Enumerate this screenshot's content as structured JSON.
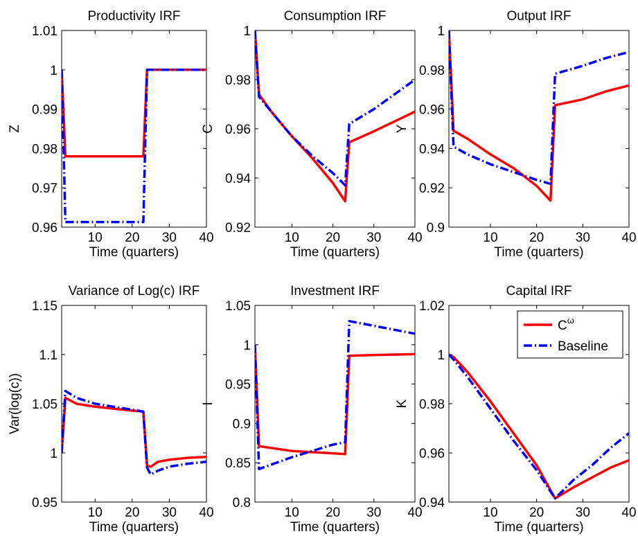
{
  "figure": {
    "legend": {
      "series_labels": [
        "C",
        "Baseline"
      ],
      "superscript": "ω",
      "colors": [
        "#ff0000",
        "#0000ff"
      ],
      "styles": [
        "solid",
        "dash-dot"
      ],
      "placement": "top-right of Capital IRF panel"
    }
  },
  "chart_data": [
    {
      "type": "line",
      "title": "Productivity IRF",
      "xlabel": "Time (quarters)",
      "ylabel": "Z",
      "xlim": [
        1,
        40
      ],
      "ylim": [
        0.96,
        1.01
      ],
      "xticks": [
        10,
        20,
        30,
        40
      ],
      "xtick_labels": [
        "10",
        "20",
        "30",
        "40"
      ],
      "yticks": [
        0.96,
        0.97,
        0.98,
        0.99,
        1,
        1.01
      ],
      "ytick_labels": [
        "0.96",
        "0.97",
        "0.98",
        "0.99",
        "1",
        "1.01"
      ],
      "series": [
        {
          "name": "C^ω",
          "color": "#ff0000",
          "style": "solid",
          "x": [
            1,
            2,
            23,
            24,
            40
          ],
          "y": [
            1.0,
            0.978,
            0.978,
            1.0,
            1.0
          ]
        },
        {
          "name": "Baseline",
          "color": "#0000ff",
          "style": "dash-dot",
          "x": [
            1,
            2,
            23,
            24,
            40
          ],
          "y": [
            1.0,
            0.9613,
            0.9613,
            1.0,
            1.0
          ]
        }
      ]
    },
    {
      "type": "line",
      "title": "Consumption IRF",
      "xlabel": "Time (quarters)",
      "ylabel": "C",
      "xlim": [
        1,
        40
      ],
      "ylim": [
        0.92,
        1
      ],
      "xticks": [
        10,
        20,
        30,
        40
      ],
      "xtick_labels": [
        "10",
        "20",
        "30",
        "40"
      ],
      "yticks": [
        0.92,
        0.94,
        0.96,
        0.98,
        1
      ],
      "ytick_labels": [
        "0.92",
        "0.94",
        "0.96",
        "0.98",
        "1"
      ],
      "series": [
        {
          "name": "C^ω",
          "color": "#ff0000",
          "style": "solid",
          "x": [
            1,
            2,
            5,
            10,
            15,
            20,
            23,
            24,
            30,
            35,
            40
          ],
          "y": [
            1.0,
            0.974,
            0.967,
            0.957,
            0.948,
            0.938,
            0.9305,
            0.9545,
            0.959,
            0.963,
            0.967
          ]
        },
        {
          "name": "Baseline",
          "color": "#0000ff",
          "style": "dash-dot",
          "x": [
            1,
            2,
            5,
            10,
            15,
            20,
            23,
            24,
            30,
            35,
            40
          ],
          "y": [
            1.0,
            0.973,
            0.967,
            0.957,
            0.949,
            0.942,
            0.937,
            0.962,
            0.968,
            0.974,
            0.98
          ]
        }
      ]
    },
    {
      "type": "line",
      "title": "Output IRF",
      "xlabel": "Time (quarters)",
      "ylabel": "Y",
      "xlim": [
        1,
        40
      ],
      "ylim": [
        0.9,
        1
      ],
      "xticks": [
        10,
        20,
        30,
        40
      ],
      "xtick_labels": [
        "10",
        "20",
        "30",
        "40"
      ],
      "yticks": [
        0.9,
        0.92,
        0.94,
        0.96,
        0.98,
        1
      ],
      "ytick_labels": [
        "0.9",
        "0.92",
        "0.94",
        "0.96",
        "0.98",
        "1"
      ],
      "series": [
        {
          "name": "C^ω",
          "color": "#ff0000",
          "style": "solid",
          "x": [
            1,
            2,
            5,
            10,
            15,
            20,
            23,
            24,
            30,
            35,
            40
          ],
          "y": [
            1.0,
            0.949,
            0.945,
            0.937,
            0.93,
            0.921,
            0.9135,
            0.962,
            0.965,
            0.969,
            0.972
          ]
        },
        {
          "name": "Baseline",
          "color": "#0000ff",
          "style": "dash-dot",
          "x": [
            1,
            2,
            5,
            10,
            15,
            20,
            23,
            24,
            30,
            35,
            40
          ],
          "y": [
            1.0,
            0.941,
            0.937,
            0.932,
            0.928,
            0.924,
            0.922,
            0.978,
            0.982,
            0.986,
            0.989
          ]
        }
      ]
    },
    {
      "type": "line",
      "title": "Variance of Log(c) IRF",
      "xlabel": "Time (quarters)",
      "ylabel": "Var(log(c))",
      "xlim": [
        1,
        40
      ],
      "ylim": [
        0.95,
        1.15
      ],
      "xticks": [
        10,
        20,
        30,
        40
      ],
      "xtick_labels": [
        "10",
        "20",
        "30",
        "40"
      ],
      "yticks": [
        0.95,
        1,
        1.05,
        1.1,
        1.15
      ],
      "ytick_labels": [
        "0.95",
        "1",
        "1.05",
        "1.1",
        "1.15"
      ],
      "series": [
        {
          "name": "C^ω",
          "color": "#ff0000",
          "style": "solid",
          "x": [
            1,
            2,
            5,
            10,
            15,
            20,
            23,
            24,
            25,
            27,
            30,
            35,
            40
          ],
          "y": [
            1.0,
            1.056,
            1.05,
            1.047,
            1.045,
            1.043,
            1.042,
            0.987,
            0.986,
            0.991,
            0.993,
            0.995,
            0.996
          ]
        },
        {
          "name": "Baseline",
          "color": "#0000ff",
          "style": "dash-dot",
          "x": [
            1,
            2,
            5,
            10,
            15,
            20,
            23,
            24,
            25,
            27,
            30,
            35,
            40
          ],
          "y": [
            1.0,
            1.063,
            1.056,
            1.05,
            1.047,
            1.044,
            1.042,
            0.985,
            0.978,
            0.982,
            0.986,
            0.989,
            0.991
          ]
        }
      ]
    },
    {
      "type": "line",
      "title": "Investment IRF",
      "xlabel": "Time (quarters)",
      "ylabel": "I",
      "xlim": [
        1,
        40
      ],
      "ylim": [
        0.8,
        1.05
      ],
      "xticks": [
        10,
        20,
        30,
        40
      ],
      "xtick_labels": [
        "10",
        "20",
        "30",
        "40"
      ],
      "yticks": [
        0.8,
        0.85,
        0.9,
        0.95,
        1,
        1.05
      ],
      "ytick_labels": [
        "0.8",
        "0.85",
        "0.9",
        "0.95",
        "1",
        "1.05"
      ],
      "series": [
        {
          "name": "C^ω",
          "color": "#ff0000",
          "style": "solid",
          "x": [
            1,
            2,
            10,
            20,
            23,
            24,
            30,
            40
          ],
          "y": [
            1.0,
            0.871,
            0.865,
            0.862,
            0.861,
            0.986,
            0.987,
            0.988
          ]
        },
        {
          "name": "Baseline",
          "color": "#0000ff",
          "style": "dash-dot",
          "x": [
            1,
            2,
            10,
            20,
            23,
            24,
            30,
            40
          ],
          "y": [
            1.0,
            0.842,
            0.857,
            0.873,
            0.876,
            1.03,
            1.024,
            1.014
          ]
        }
      ]
    },
    {
      "type": "line",
      "title": "Capital IRF",
      "xlabel": "Time (quarters)",
      "ylabel": "K",
      "xlim": [
        1,
        40
      ],
      "ylim": [
        0.94,
        1.02
      ],
      "xticks": [
        10,
        20,
        30,
        40
      ],
      "xtick_labels": [
        "10",
        "20",
        "30",
        "40"
      ],
      "yticks": [
        0.94,
        0.96,
        0.98,
        1,
        1.02
      ],
      "ytick_labels": [
        "0.94",
        "0.96",
        "0.98",
        "1",
        "1.02"
      ],
      "series": [
        {
          "name": "C^ω",
          "color": "#ff0000",
          "style": "solid",
          "x": [
            1,
            2,
            5,
            10,
            15,
            20,
            24,
            28,
            32,
            36,
            40
          ],
          "y": [
            1.0,
            0.999,
            0.993,
            0.981,
            0.968,
            0.955,
            0.9415,
            0.946,
            0.95,
            0.954,
            0.957
          ]
        },
        {
          "name": "Baseline",
          "color": "#0000ff",
          "style": "dash-dot",
          "x": [
            1,
            2,
            5,
            10,
            15,
            20,
            24,
            28,
            32,
            36,
            40
          ],
          "y": [
            1.0,
            0.998,
            0.991,
            0.978,
            0.965,
            0.953,
            0.9415,
            0.949,
            0.955,
            0.962,
            0.968
          ]
        }
      ]
    }
  ]
}
